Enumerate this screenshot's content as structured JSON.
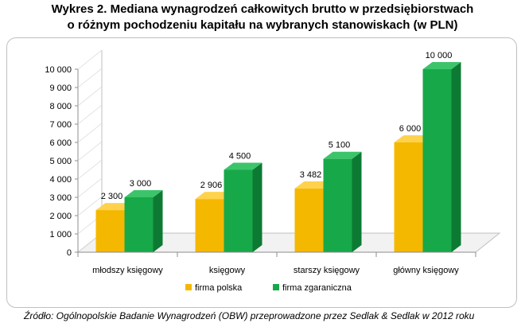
{
  "title_line1": "Wykres 2. Mediana wynagrodzeń całkowitych brutto w przedsiębiorstwach",
  "title_line2": "o różnym pochodzeniu kapitału na wybranych stanowiskach (w PLN)",
  "source": "Źródło: Ogólnopolskie Badanie Wynagrodzeń (OBW) przeprowadzone przez Sedlak & Sedlak w 2012 roku",
  "colors": {
    "firma_polska": "#f5b800",
    "firma_zagraniczna": "#17a84a"
  },
  "chart_data": {
    "type": "bar",
    "title": "",
    "xlabel": "",
    "ylabel": "",
    "ylim": [
      0,
      10000
    ],
    "ytick_labels": [
      "0",
      "1 000",
      "2 000",
      "3 000",
      "4 000",
      "5 000",
      "6 000",
      "7 000",
      "8 000",
      "9 000",
      "10 000"
    ],
    "yticks": [
      0,
      1000,
      2000,
      3000,
      4000,
      5000,
      6000,
      7000,
      8000,
      9000,
      10000
    ],
    "categories": [
      "młodszy księgowy",
      "księgowy",
      "starszy księgowy",
      "główny księgowy"
    ],
    "series": [
      {
        "name": "firma polska",
        "values": [
          2300,
          2906,
          3482,
          6000
        ],
        "labels": [
          "2 300",
          "2 906",
          "3 482",
          "6 000"
        ]
      },
      {
        "name": "firma zgaraniczna",
        "values": [
          3000,
          4500,
          5100,
          10000
        ],
        "labels": [
          "3 000",
          "4 500",
          "5 100",
          "10 000"
        ]
      }
    ],
    "legend_position": "bottom",
    "grid": false
  }
}
